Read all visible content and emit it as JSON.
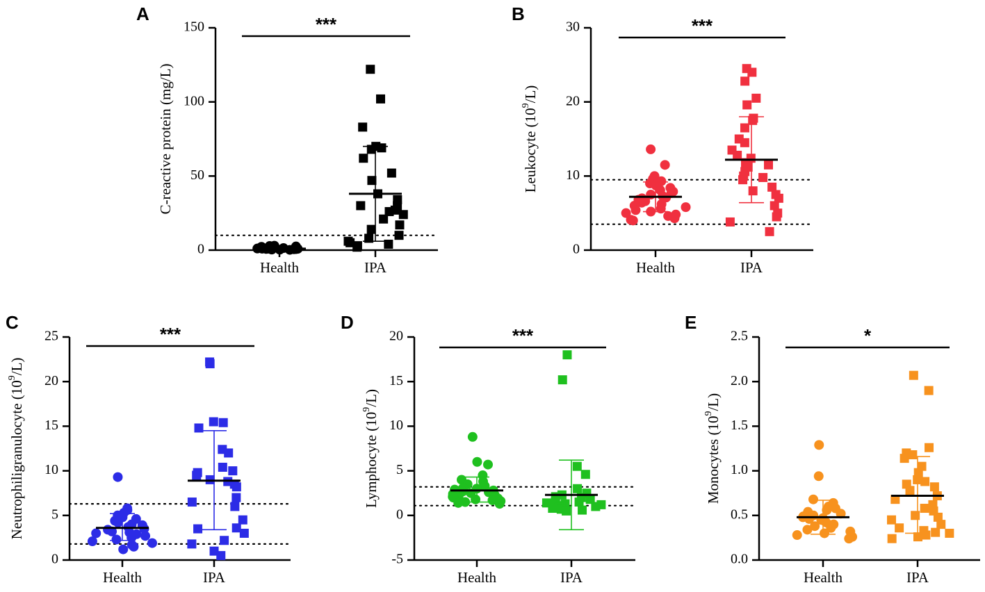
{
  "chart_data": [
    {
      "panel": "A",
      "type": "scatter",
      "ylabel": "C-reactive protein (mg/L)",
      "ylabel_sup": "",
      "ylabel_suffix": "",
      "ylim": [
        0,
        150
      ],
      "yticks": [
        0,
        50,
        100,
        150
      ],
      "ytick_labels": [
        "0",
        "50",
        "100",
        "150"
      ],
      "categories": [
        "Health",
        "IPA"
      ],
      "reference_lines": [
        10
      ],
      "significance": "***",
      "color": "#000000",
      "series": [
        {
          "name": "Health",
          "marker": "circle",
          "mean": 1,
          "sd_low": 0,
          "sd_high": 2,
          "values": [
            3,
            1,
            0.5,
            2,
            1.5,
            0.8,
            1.2,
            0.3,
            2.5,
            1,
            0.7,
            1.8,
            0.4,
            2.2,
            1.1,
            0.6,
            1.4,
            0.9,
            2.8,
            0.2
          ]
        },
        {
          "name": "IPA",
          "marker": "square",
          "mean": 38,
          "sd_low": 6,
          "sd_high": 70,
          "values": [
            122,
            102,
            83,
            70,
            69,
            68,
            62,
            52,
            47,
            38,
            34,
            30,
            30,
            27,
            26,
            24,
            21,
            17,
            14,
            10,
            8,
            6,
            5,
            4,
            3,
            2
          ]
        }
      ]
    },
    {
      "panel": "B",
      "type": "scatter",
      "ylabel": "Leukocyte (10",
      "ylabel_sup": "9",
      "ylabel_suffix": "/L)",
      "ylim": [
        0,
        30
      ],
      "yticks": [
        0,
        10,
        20,
        30
      ],
      "ytick_labels": [
        "0",
        "10",
        "20",
        "30"
      ],
      "categories": [
        "Health",
        "IPA"
      ],
      "reference_lines": [
        3.5,
        9.5
      ],
      "significance": "***",
      "color": "#f0303f",
      "series": [
        {
          "name": "Health",
          "marker": "circle",
          "mean": 7.2,
          "sd_low": 5.2,
          "sd_high": 9.2,
          "values": [
            13.6,
            11.5,
            10,
            9.6,
            9.3,
            9,
            8.7,
            8.4,
            8.1,
            7.9,
            7.7,
            7.5,
            7.3,
            7.1,
            7,
            6.8,
            6.6,
            6.4,
            6.2,
            6,
            5.8,
            5.6,
            5.4,
            5.2,
            5,
            4.8,
            4.6,
            4.3,
            4.1,
            4
          ]
        },
        {
          "name": "IPA",
          "marker": "square",
          "mean": 12.2,
          "sd_low": 6.4,
          "sd_high": 18,
          "values": [
            24.5,
            24,
            22.8,
            20.5,
            19.6,
            17.8,
            17.5,
            16.5,
            15,
            14.5,
            13.5,
            12.8,
            12.4,
            11.8,
            11.5,
            11.2,
            10.6,
            10,
            9.8,
            9.5,
            8.5,
            8,
            7.5,
            7,
            6,
            5,
            4.5,
            3.8,
            2.5
          ]
        }
      ]
    },
    {
      "panel": "C",
      "type": "scatter",
      "ylabel": "Neutrophiligranulocyte (10",
      "ylabel_sup": "9",
      "ylabel_suffix": "/L)",
      "ylim": [
        0,
        25
      ],
      "yticks": [
        0,
        5,
        10,
        15,
        20,
        25
      ],
      "ytick_labels": [
        "0",
        "5",
        "10",
        "15",
        "20",
        "25"
      ],
      "categories": [
        "Health",
        "IPA"
      ],
      "reference_lines": [
        1.8,
        6.3
      ],
      "significance": "***",
      "color": "#2c2ce6",
      "series": [
        {
          "name": "Health",
          "marker": "circle",
          "mean": 3.6,
          "sd_low": 2.2,
          "sd_high": 5.2,
          "values": [
            9.3,
            5.8,
            5.6,
            5.3,
            5,
            4.8,
            4.6,
            4.4,
            4.2,
            4,
            3.9,
            3.7,
            3.5,
            3.4,
            3.2,
            3.1,
            3,
            2.9,
            2.7,
            2.5,
            2.3,
            2.1,
            1.9,
            1.7,
            1.5,
            1.2
          ]
        },
        {
          "name": "IPA",
          "marker": "square",
          "mean": 8.9,
          "sd_low": 3.4,
          "sd_high": 14.5,
          "values": [
            22.2,
            22,
            15.5,
            15.4,
            14.8,
            12.4,
            12,
            10.4,
            10,
            9.8,
            9.5,
            9,
            8.8,
            8.5,
            8.2,
            7,
            6.5,
            6,
            4.5,
            3.6,
            3.5,
            3,
            2.2,
            1.8,
            1,
            0.5
          ]
        }
      ]
    },
    {
      "panel": "D",
      "type": "scatter",
      "ylabel": "Lymphocyte (10",
      "ylabel_sup": "9",
      "ylabel_suffix": "/L)",
      "ylim": [
        -5,
        20
      ],
      "yticks": [
        -5,
        0,
        5,
        10,
        15,
        20
      ],
      "ytick_labels": [
        "-5",
        "0",
        "5",
        "10",
        "15",
        "20"
      ],
      "categories": [
        "Health",
        "IPA"
      ],
      "reference_lines": [
        1.1,
        3.2
      ],
      "significance": "***",
      "color": "#1fc01f",
      "series": [
        {
          "name": "Health",
          "marker": "circle",
          "mean": 2.8,
          "sd_low": 1.5,
          "sd_high": 4.3,
          "values": [
            8.8,
            6,
            5.7,
            4.5,
            4,
            3.8,
            3.5,
            3.3,
            3.1,
            3,
            2.9,
            2.8,
            2.7,
            2.6,
            2.5,
            2.4,
            2.3,
            2.2,
            2.1,
            2,
            1.9,
            1.8,
            1.7,
            1.6,
            1.5,
            1.4,
            1.3
          ]
        },
        {
          "name": "IPA",
          "marker": "square",
          "mean": 2.3,
          "sd_low": -1.6,
          "sd_high": 6.2,
          "values": [
            18,
            15.2,
            5.5,
            4.6,
            3,
            2.5,
            2.3,
            2.1,
            2,
            1.8,
            1.6,
            1.5,
            1.4,
            1.3,
            1.2,
            1.1,
            1,
            0.9,
            0.8,
            0.7,
            0.6,
            0.5
          ]
        }
      ]
    },
    {
      "panel": "E",
      "type": "scatter",
      "ylabel": "Monocytes (10",
      "ylabel_sup": "9",
      "ylabel_suffix": "/L)",
      "ylim": [
        0,
        2.5
      ],
      "yticks": [
        0,
        0.5,
        1.0,
        1.5,
        2.0,
        2.5
      ],
      "ytick_labels": [
        "0.0",
        "0.5",
        "1.0",
        "1.5",
        "2.0",
        "2.5"
      ],
      "categories": [
        "Health",
        "IPA"
      ],
      "reference_lines": [],
      "significance": "*",
      "color": "#f7921e",
      "series": [
        {
          "name": "Health",
          "marker": "circle",
          "mean": 0.48,
          "sd_low": 0.29,
          "sd_high": 0.67,
          "values": [
            1.29,
            0.94,
            0.68,
            0.64,
            0.6,
            0.58,
            0.56,
            0.54,
            0.52,
            0.5,
            0.49,
            0.48,
            0.47,
            0.46,
            0.45,
            0.44,
            0.42,
            0.4,
            0.38,
            0.36,
            0.34,
            0.32,
            0.3,
            0.28,
            0.26,
            0.24
          ]
        },
        {
          "name": "IPA",
          "marker": "square",
          "mean": 0.72,
          "sd_low": 0.3,
          "sd_high": 1.16,
          "values": [
            2.07,
            1.9,
            1.26,
            1.2,
            1.18,
            1.14,
            1.05,
            0.98,
            0.9,
            0.88,
            0.85,
            0.82,
            0.78,
            0.72,
            0.68,
            0.62,
            0.58,
            0.55,
            0.5,
            0.48,
            0.45,
            0.4,
            0.36,
            0.33,
            0.31,
            0.3,
            0.28,
            0.26,
            0.24
          ]
        }
      ]
    }
  ]
}
